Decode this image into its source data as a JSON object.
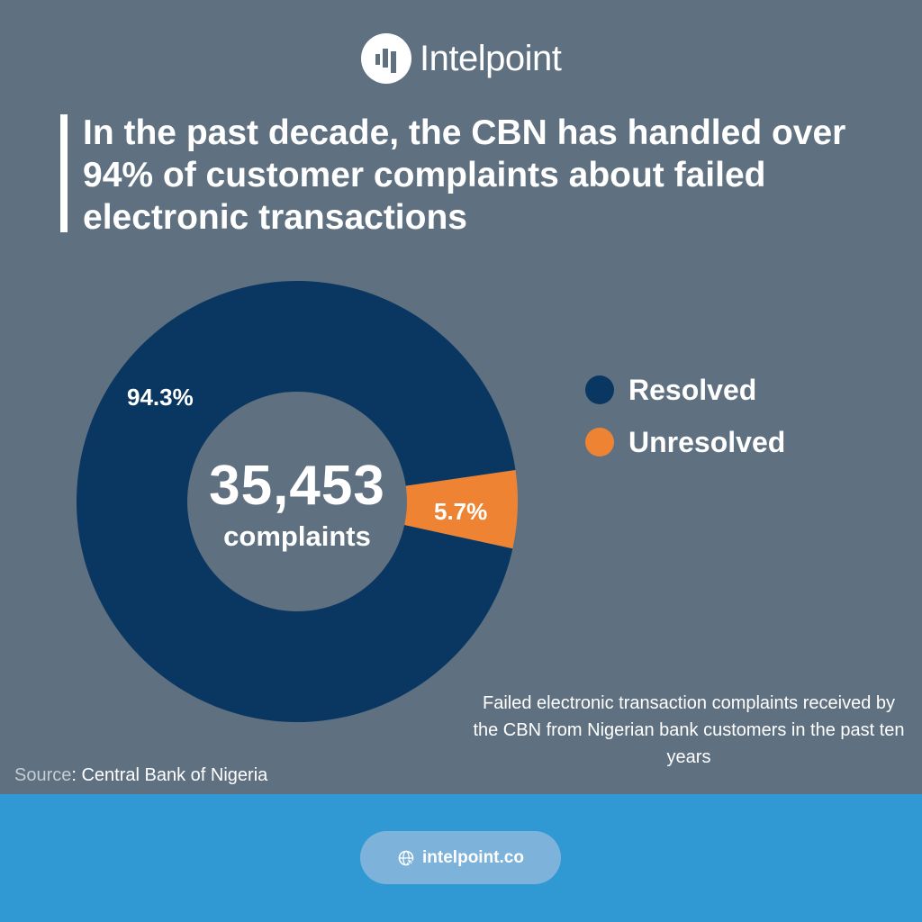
{
  "brand": {
    "name": "Intelpoint",
    "logo_icon": "bar-chart-circle-icon"
  },
  "headline": {
    "lines": [
      "In the past decade, the CBN has handled over",
      "94% of customer complaints about failed",
      "electronic transactions"
    ]
  },
  "center": {
    "value": "35,453",
    "label": "complaints"
  },
  "legend": {
    "items": [
      {
        "label": "Resolved",
        "color": "#0a3761"
      },
      {
        "label": "Unresolved",
        "color": "#ee8433"
      }
    ]
  },
  "slice_labels": {
    "resolved": "94.3%",
    "unresolved": "5.7%"
  },
  "caption": "Failed electronic transaction complaints received by the CBN from Nigerian bank customers in the past ten years",
  "source": {
    "key": "Source",
    "value": ": Central Bank of Nigeria"
  },
  "footer": {
    "link_text": "intelpoint.co",
    "link_icon": "globe-cursor-icon"
  },
  "colors": {
    "background": "#5f7080",
    "resolved": "#0a3761",
    "unresolved": "#ee8433",
    "footer_band": "#3098d2",
    "pill": "#7db3da"
  },
  "chart_data": {
    "type": "pie",
    "variant": "donut",
    "title": "In the past decade, the CBN has handled over 94% of customer complaints about failed electronic transactions",
    "subtitle": "Failed electronic transaction complaints received by the CBN from Nigerian bank customers in the past ten years",
    "total": 35453,
    "total_label": "complaints",
    "categories": [
      "Resolved",
      "Unresolved"
    ],
    "values": [
      94.3,
      5.7
    ],
    "unit": "%",
    "colors": [
      "#0a3761",
      "#ee8433"
    ],
    "legend_position": "right",
    "source": "Central Bank of Nigeria"
  }
}
